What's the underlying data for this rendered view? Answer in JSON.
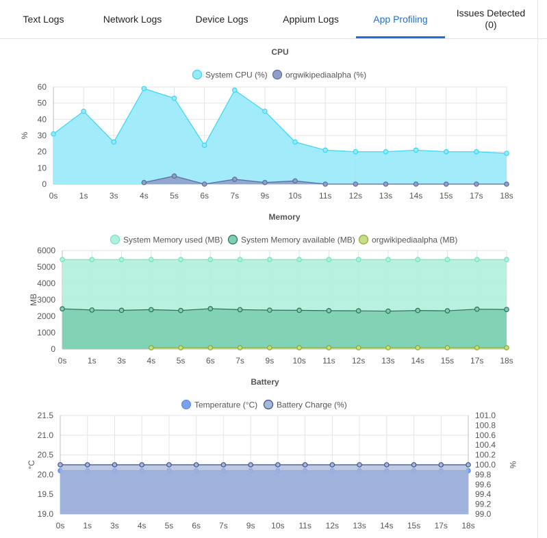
{
  "tabs": [
    {
      "label": "Text Logs"
    },
    {
      "label": "Network Logs"
    },
    {
      "label": "Device Logs"
    },
    {
      "label": "Appium Logs"
    },
    {
      "label": "App Profiling",
      "active": true
    },
    {
      "label": "Issues Detected",
      "count": "(0)"
    }
  ],
  "accent": "#1e6fd9",
  "chart_data": [
    {
      "type": "area",
      "title": "CPU",
      "ylabel": "%",
      "ylim": [
        0,
        60
      ],
      "yticks": [
        0,
        10,
        20,
        30,
        40,
        50,
        60
      ],
      "categories": [
        "0s",
        "1s",
        "3s",
        "4s",
        "5s",
        "6s",
        "7s",
        "9s",
        "10s",
        "11s",
        "12s",
        "13s",
        "14s",
        "15s",
        "17s",
        "18s"
      ],
      "series": [
        {
          "name": "System CPU (%)",
          "color": "#38d6f5",
          "fill": "#97e9fb",
          "values": [
            31,
            45,
            26,
            59,
            53,
            24,
            58,
            45,
            26,
            21,
            20,
            20,
            21,
            20,
            20,
            19
          ]
        },
        {
          "name": "orgwikipediaalpha (%)",
          "color": "#5a6aa0",
          "fill": "#8fa0c8",
          "values": [
            null,
            null,
            null,
            1,
            5,
            0,
            3,
            1,
            2,
            0,
            0,
            0,
            0,
            0,
            0,
            0
          ]
        }
      ],
      "legend": "top",
      "grid": true
    },
    {
      "type": "area",
      "title": "Memory",
      "ylabel": "MB",
      "ylim": [
        0,
        6000
      ],
      "yticks": [
        0,
        1000,
        2000,
        3000,
        4000,
        5000,
        6000
      ],
      "categories": [
        "0s",
        "1s",
        "3s",
        "4s",
        "5s",
        "6s",
        "7s",
        "9s",
        "10s",
        "11s",
        "12s",
        "13s",
        "14s",
        "15s",
        "17s",
        "18s"
      ],
      "series": [
        {
          "name": "System Memory used (MB)",
          "color": "#6fe3bf",
          "fill": "#b1f0de",
          "values": [
            5450,
            5450,
            5450,
            5450,
            5450,
            5450,
            5450,
            5450,
            5450,
            5450,
            5450,
            5450,
            5450,
            5450,
            5450,
            5450
          ]
        },
        {
          "name": "System Memory available (MB)",
          "color": "#2f6e52",
          "fill": "#7ccfb1",
          "values": [
            2450,
            2380,
            2360,
            2400,
            2350,
            2460,
            2400,
            2370,
            2360,
            2340,
            2330,
            2310,
            2350,
            2330,
            2430,
            2410
          ]
        },
        {
          "name": "orgwikipediaalpha (MB)",
          "color": "#8aab2a",
          "fill": "#c8dd8a",
          "values": [
            null,
            null,
            null,
            80,
            80,
            80,
            80,
            80,
            80,
            80,
            80,
            80,
            80,
            80,
            80,
            80
          ]
        }
      ],
      "legend": "top",
      "grid": true
    },
    {
      "type": "area",
      "title": "Battery",
      "ylabel": "°C",
      "y2label": "%",
      "ylim": [
        19.0,
        21.5
      ],
      "yticks": [
        19.0,
        19.5,
        20.0,
        20.5,
        21.0,
        21.5
      ],
      "y2lim": [
        99.0,
        101.0
      ],
      "y2ticks": [
        99.0,
        99.2,
        99.4,
        99.6,
        99.8,
        100.0,
        100.2,
        100.4,
        100.6,
        100.8,
        101.0
      ],
      "categories": [
        "0s",
        "1s",
        "3s",
        "4s",
        "5s",
        "6s",
        "7s",
        "9s",
        "10s",
        "11s",
        "12s",
        "13s",
        "14s",
        "15s",
        "17s",
        "18s"
      ],
      "series": [
        {
          "name": "Temperature (°C)",
          "axis": "left",
          "color": "#5b8ef0",
          "fill": "#7da0ea",
          "values": [
            20.1,
            20.1,
            20.1,
            20.1,
            20.1,
            20.1,
            20.1,
            20.1,
            20.1,
            20.1,
            20.1,
            20.1,
            20.1,
            20.1,
            20.1,
            20.1
          ]
        },
        {
          "name": "Battery Charge (%)",
          "axis": "right",
          "color": "#3c4f8a",
          "fill": "#a7b7d8",
          "values": [
            100,
            100,
            100,
            100,
            100,
            100,
            100,
            100,
            100,
            100,
            100,
            100,
            100,
            100,
            100,
            100
          ]
        }
      ],
      "legend": "top",
      "grid": true
    }
  ]
}
